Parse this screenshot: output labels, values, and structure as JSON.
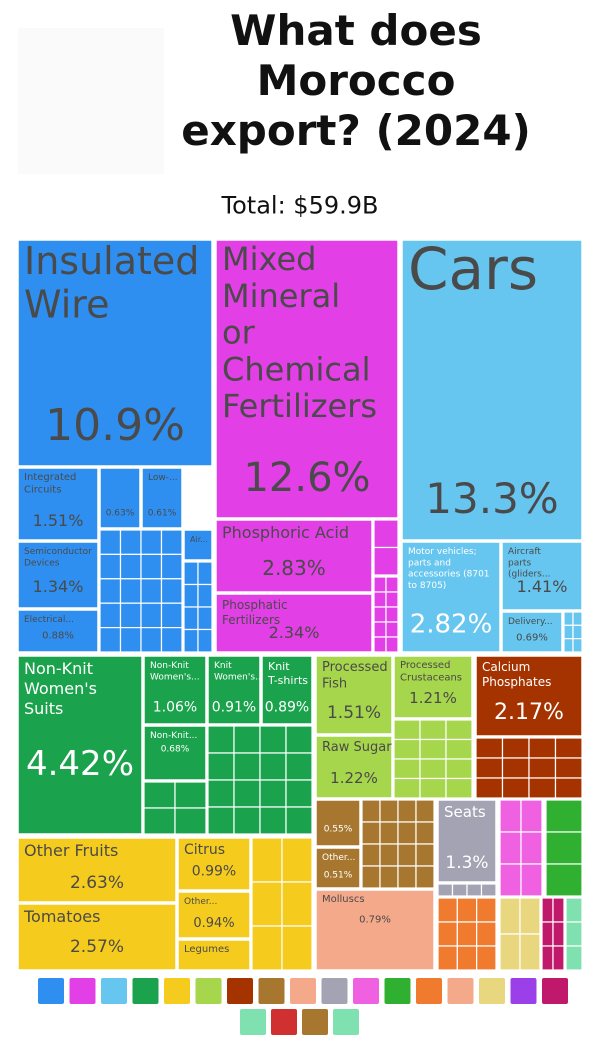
{
  "chart_data": {
    "type": "treemap",
    "title": "What does Morocco export? (2024)",
    "subtitle": "Total: $59.9B",
    "categories": [
      "Insulated Wire",
      "Integrated Circuits",
      "Semiconductor Devices",
      "Electrical...",
      null,
      "Low-...",
      "Air...",
      "Mixed Mineral or Chemical Fertilizers",
      "Phosphoric Acid",
      "Phosphatic Fertilizers",
      "Cars",
      "Motor vehicles; parts and accessories (8701 to 8705)",
      "Aircraft parts (gliders...",
      "Delivery...",
      "Non-Knit Women's Suits",
      "Non-Knit Women's...",
      "Knit Women's...",
      "Knit T-shirts",
      "Non-Knit...",
      "Processed Fish",
      "Raw Sugar",
      "Processed Crustaceans",
      "Calcium Phosphates",
      "Other Fruits",
      "Tomatoes",
      "Citrus",
      "Other...",
      "Legumes",
      null,
      "Other...",
      "Molluscs",
      "Seats"
    ],
    "values": [
      10.9,
      1.51,
      1.34,
      0.88,
      0.63,
      0.61,
      0.3,
      12.6,
      2.83,
      2.34,
      13.3,
      2.82,
      1.41,
      0.69,
      4.42,
      1.06,
      0.91,
      0.89,
      0.68,
      1.51,
      1.22,
      1.21,
      2.17,
      2.63,
      2.57,
      0.99,
      0.94,
      0.4,
      0.55,
      0.51,
      0.79,
      1.3
    ],
    "value_labels": [
      "10.9%",
      "1.51%",
      "1.34%",
      "0.88%",
      "0.63%",
      "0.61%",
      null,
      "12.6%",
      "2.83%",
      "2.34%",
      "13.3%",
      "2.82%",
      "1.41%",
      "0.69%",
      "4.42%",
      "1.06%",
      "0.91%",
      "0.89%",
      "0.68%",
      "1.51%",
      "1.22%",
      "1.21%",
      "2.17%",
      "2.63%",
      "2.57%",
      "0.99%",
      "0.94%",
      null,
      "0.55%",
      "0.51%",
      "0.79%",
      "1.3%"
    ],
    "colors": [
      "#2f8ff0",
      "#2f8ff0",
      "#2f8ff0",
      "#2f8ff0",
      "#2f8ff0",
      "#2f8ff0",
      "#2f8ff0",
      "#e23fe6",
      "#e23fe6",
      "#e23fe6",
      "#67c6ef",
      "#67c6ef",
      "#67c6ef",
      "#67c6ef",
      "#1aa34c",
      "#1aa34c",
      "#1aa34c",
      "#1aa34c",
      "#1aa34c",
      "#a6d64c",
      "#a6d64c",
      "#a6d64c",
      "#a53300",
      "#f5cc1e",
      "#f5cc1e",
      "#f5cc1e",
      "#f5cc1e",
      "#f5cc1e",
      "#a8772f",
      "#a8772f",
      "#f4a98a",
      "#a3a3b3"
    ]
  }
}
